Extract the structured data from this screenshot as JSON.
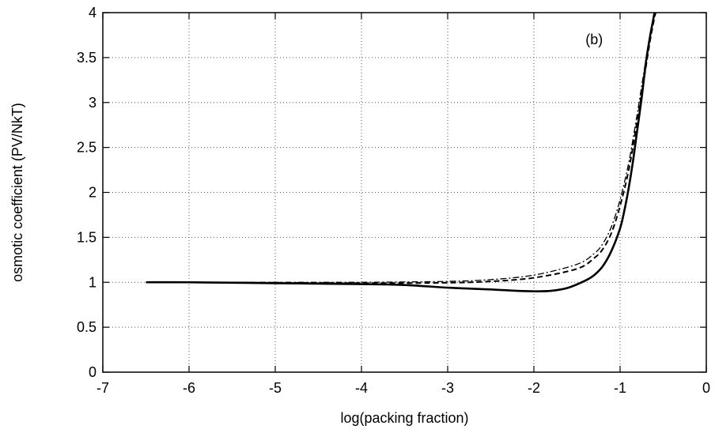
{
  "chart_data": {
    "type": "line",
    "title": "",
    "panel_label": "(b)",
    "xlabel": "log(packing fraction)",
    "ylabel": "osmotic coefficient (PV/NkT)",
    "xlim": [
      -7,
      0
    ],
    "ylim": [
      0,
      4
    ],
    "xticks": [
      -7,
      -6,
      -5,
      -4,
      -3,
      -2,
      -1,
      0
    ],
    "yticks": [
      0,
      0.5,
      1,
      1.5,
      2,
      2.5,
      3,
      3.5,
      4
    ],
    "xtick_labels": [
      "-7",
      "-6",
      "-5",
      "-4",
      "-3",
      "-2",
      "-1",
      "0"
    ],
    "ytick_labels": [
      "0",
      "0.5",
      "1",
      "1.5",
      "2",
      "2.5",
      "3",
      "3.5",
      "4"
    ],
    "grid": true,
    "legend": "none",
    "series": [
      {
        "style": "solid",
        "x": [
          -6.5,
          -6.0,
          -5.0,
          -4.0,
          -3.5,
          -3.0,
          -2.5,
          -2.2,
          -2.0,
          -1.8,
          -1.6,
          -1.4,
          -1.3,
          -1.2,
          -1.1,
          -1.0,
          -0.95,
          -0.9,
          -0.85,
          -0.8,
          -0.75,
          -0.7,
          -0.65,
          -0.62,
          -0.6,
          -0.58
        ],
        "y": [
          1.0,
          1.0,
          0.99,
          0.98,
          0.97,
          0.94,
          0.92,
          0.905,
          0.9,
          0.905,
          0.94,
          1.02,
          1.08,
          1.18,
          1.35,
          1.6,
          1.8,
          2.05,
          2.35,
          2.7,
          3.05,
          3.45,
          3.75,
          3.9,
          4.0,
          4.05
        ]
      },
      {
        "style": "dashed",
        "x": [
          -6.5,
          -5.0,
          -4.0,
          -3.0,
          -2.5,
          -2.0,
          -1.5,
          -1.3,
          -1.2,
          -1.1,
          -1.0,
          -0.9,
          -0.8,
          -0.75,
          -0.7,
          -0.65,
          -0.6,
          -0.57
        ],
        "y": [
          1.0,
          0.995,
          0.99,
          0.995,
          1.01,
          1.05,
          1.15,
          1.27,
          1.37,
          1.55,
          1.85,
          2.25,
          2.8,
          3.1,
          3.4,
          3.7,
          3.95,
          4.05
        ]
      },
      {
        "style": "dash-dot",
        "x": [
          -6.5,
          -5.0,
          -4.0,
          -3.0,
          -2.5,
          -2.0,
          -1.5,
          -1.3,
          -1.2,
          -1.1,
          -1.0,
          -0.9,
          -0.8,
          -0.75,
          -0.7,
          -0.65,
          -0.6,
          -0.57
        ],
        "y": [
          1.0,
          1.0,
          1.0,
          1.01,
          1.03,
          1.08,
          1.2,
          1.32,
          1.43,
          1.62,
          1.92,
          2.33,
          2.88,
          3.18,
          3.48,
          3.76,
          4.0,
          4.08
        ]
      }
    ]
  }
}
